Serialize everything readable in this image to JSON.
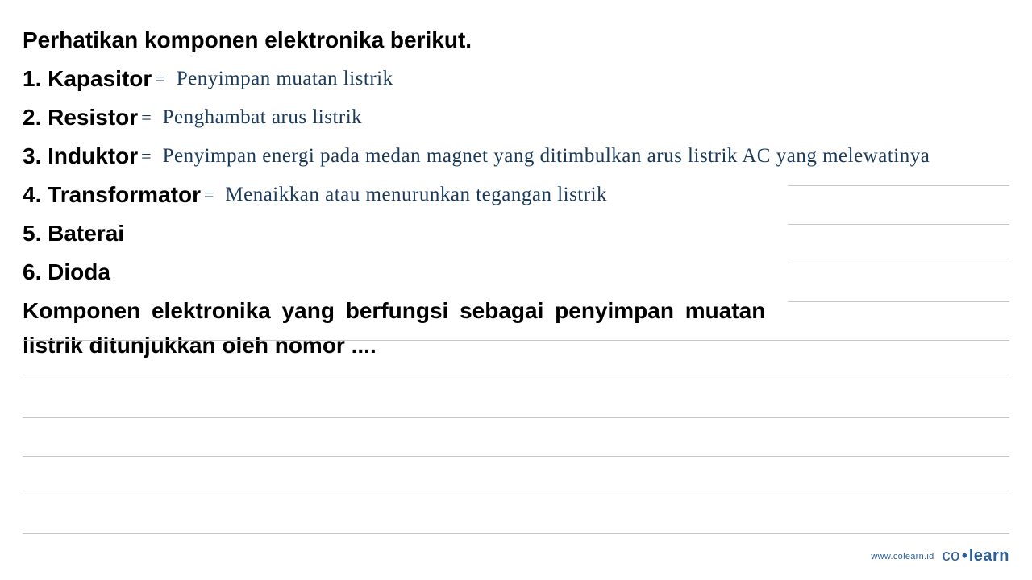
{
  "title": "Perhatikan komponen elektronika berikut.",
  "items": [
    {
      "num": "1.",
      "label": "Kapasitor",
      "annotation": "Penyimpan  muatan  listrik"
    },
    {
      "num": "2.",
      "label": "Resistor",
      "annotation": "Penghambat  arus  listrik"
    },
    {
      "num": "3.",
      "label": "Induktor",
      "annotation": "Penyimpan  energi  pada  medan  magnet  yang  ditimbulkan  arus  listrik  AC  yang  melewatinya"
    },
    {
      "num": "4.",
      "label": "Transformator",
      "annotation": "Menaikkan  atau  menurunkan  tegangan  listrik"
    },
    {
      "num": "5.",
      "label": "Baterai",
      "annotation": ""
    },
    {
      "num": "6.",
      "label": "Dioda",
      "annotation": ""
    }
  ],
  "question_line1": "Komponen elektronika yang berfungsi sebagai penyimpan muatan",
  "question_line2": "listrik ditunjukkan oleh nomor ....",
  "footer": {
    "url": "www.colearn.id",
    "logo_co": "co",
    "logo_learn": "learn"
  },
  "colors": {
    "printed_text": "#000000",
    "handwritten_text": "#1a3a5c",
    "rule_line": "#c8c8c8",
    "brand": "#2b5f9e",
    "background": "#ffffff"
  },
  "typography": {
    "printed_fontsize": 28,
    "handwritten_fontsize": 25,
    "question_fontsize": 28,
    "footer_url_fontsize": 11,
    "footer_logo_fontsize": 20
  },
  "layout": {
    "short_rule_tops": [
      230,
      278,
      326,
      374
    ],
    "full_rule_tops": [
      422,
      470,
      518,
      566,
      614,
      662
    ],
    "short_rule_width": 275
  }
}
